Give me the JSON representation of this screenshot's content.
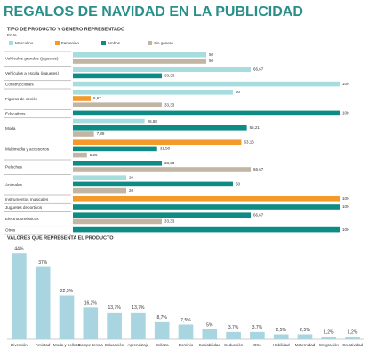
{
  "title": "REGALOS DE NAVIDAD EN LA PUBLICIDAD",
  "chart_data": [
    {
      "type": "hbar-grouped",
      "title": "TIPO DE PRODUCTO Y GENERO REPRESENTADO",
      "subtitle": "En %",
      "categories": [
        "Vehículos grandes (juguetes)",
        "Vehículos a escala (juguetes)",
        "Construcciones",
        "Figuras de acción",
        "Educativos",
        "Moda",
        "Multimedia y accesorios",
        "Peluches",
        "Animales",
        "Instrumentos musicales",
        "Juguetes deportivos",
        "Electrodomésticos",
        "Otros"
      ],
      "series": [
        {
          "name": "Masculino",
          "color": "#a8dde0",
          "values": [
            50,
            66.67,
            100,
            60,
            null,
            26.88,
            null,
            null,
            20,
            null,
            null,
            null,
            null
          ],
          "value_labels": [
            "50",
            "66,67",
            "100",
            "60",
            null,
            "26,88",
            null,
            null,
            "20",
            null,
            null,
            null,
            null
          ]
        },
        {
          "name": "Femenino",
          "color": "#f39a2b",
          "values": [
            null,
            null,
            null,
            6.67,
            null,
            null,
            63.16,
            null,
            null,
            100,
            null,
            null,
            null
          ],
          "value_labels": [
            null,
            null,
            null,
            "6,67",
            null,
            null,
            "63,16",
            null,
            null,
            "100",
            null,
            null,
            null
          ]
        },
        {
          "name": "Ambos",
          "color": "#0e8b84",
          "values": [
            null,
            33.33,
            null,
            null,
            100,
            65.21,
            31.58,
            33.33,
            60,
            null,
            100,
            66.67,
            100
          ],
          "value_labels": [
            null,
            "33,33",
            null,
            null,
            "100",
            "65,21",
            "31,58",
            "33,33",
            "60",
            null,
            "100",
            "66,67",
            "100"
          ]
        },
        {
          "name": "Sin género",
          "color": "#c2b5a3",
          "values": [
            50,
            null,
            null,
            33.33,
            null,
            7.89,
            5.26,
            66.67,
            20,
            null,
            null,
            33.33,
            null
          ],
          "value_labels": [
            "50",
            null,
            null,
            "33,33",
            null,
            "7,89",
            "5,26",
            "66,67",
            "20",
            null,
            null,
            "33,33",
            null
          ]
        }
      ]
    },
    {
      "type": "bar",
      "title": "VALORES QUE REPRESENTA EL PRODUCTO",
      "color": "#a9d5e0",
      "categories": [
        "Diversión",
        "Amistad",
        "Moda y belleza",
        "Compe-tencia",
        "Educación",
        "Aprendizaje",
        "Belleza",
        "Dominio",
        "Sociabilidad",
        "Seducción",
        "Otro",
        "Habilidad",
        "Maternidad",
        "Integración",
        "Creatividad"
      ],
      "values": [
        44,
        37,
        22.5,
        16.2,
        13.7,
        13.7,
        8.7,
        7.5,
        5,
        3.7,
        3.7,
        2.5,
        2.5,
        1.2,
        1.2
      ],
      "value_labels": [
        "44%",
        "37%",
        "22,5%",
        "16,2%",
        "13,7%",
        "13,7%",
        "8,7%",
        "7,5%",
        "5%",
        "3,7%",
        "3,7%",
        "2,5%",
        "2,5%",
        "1,2%",
        "1,2%"
      ]
    }
  ]
}
